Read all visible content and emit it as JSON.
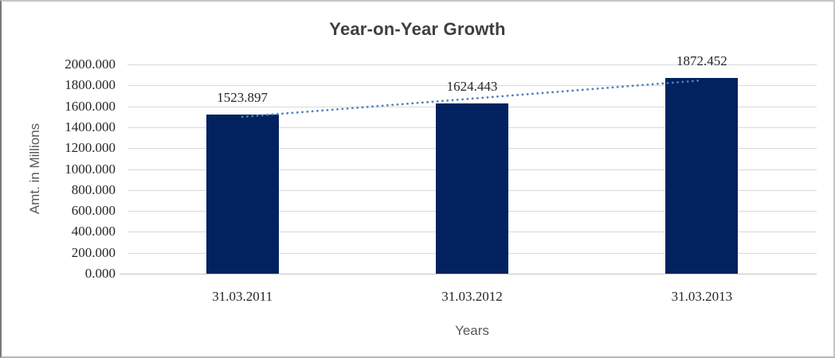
{
  "chart_data": {
    "type": "bar",
    "title": "Year-on-Year Growth",
    "xlabel": "Years",
    "ylabel": "Amt. in Millions",
    "categories": [
      "31.03.2011",
      "31.03.2012",
      "31.03.2013"
    ],
    "values": [
      1523.897,
      1624.443,
      1872.452
    ],
    "data_labels": [
      "1523.897",
      "1624.443",
      "1872.452"
    ],
    "y_ticks": [
      "2000.000",
      "1800.000",
      "1600.000",
      "1400.000",
      "1200.000",
      "1000.000",
      "800.000",
      "600.000",
      "400.000",
      "200.000",
      "0.000"
    ],
    "ylim": [
      0,
      2000
    ],
    "y_step": 200,
    "grid": true,
    "legend": "none",
    "trendline": {
      "type": "linear",
      "style": "dotted"
    },
    "colors": {
      "bar": "#02225f",
      "trendline": "#4d80c0",
      "gridline": "#d9d9d9",
      "axis_line": "#c3c3c3",
      "tick_text": "#262626",
      "title_text": "#3f3f3f",
      "axis_title_text": "#595959"
    }
  }
}
